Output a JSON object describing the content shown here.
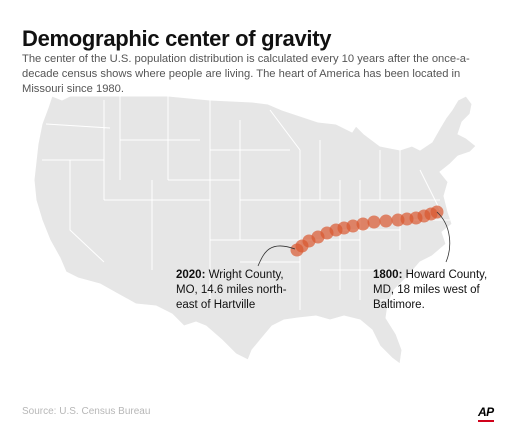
{
  "title": "Demographic center of gravity",
  "subtitle": "The center of the U.S. population distribution is calculated every 10 years after the once-a-decade census shows where people are living. The heart of America has been located in Missouri since 1980.",
  "annotations": {
    "end": {
      "year": "2020:",
      "line1": "Wright County,",
      "line2": "MO, 14.6 miles north-",
      "line3": "east of Hartville"
    },
    "start": {
      "year": "1800:",
      "line1": "Howard County,",
      "line2": "MD, 18 miles west of",
      "line3": "Baltimore."
    }
  },
  "marker_color": "#d9572f",
  "source": "Source: U.S. Census Bureau",
  "logo": "AP"
}
